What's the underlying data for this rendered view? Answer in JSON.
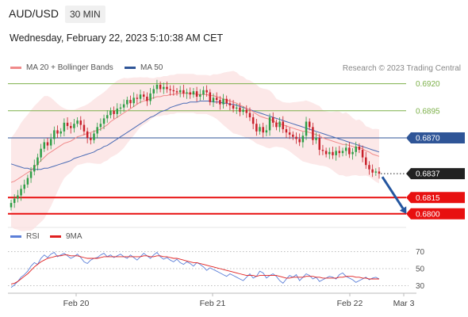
{
  "header": {
    "symbol": "AUD/USD",
    "timeframe": "30 MIN",
    "datetime": "Wednesday, February 22, 2023 5:10:38 AM CET",
    "credit": "Research © 2023 Trading Central"
  },
  "legend": {
    "price": [
      {
        "label": "MA 20 + Bollinger Bands",
        "color": "#f08a8a"
      },
      {
        "label": "MA 50",
        "color": "#2f5597"
      }
    ],
    "indicator": [
      {
        "label": "RSI",
        "color": "#5b7fd8"
      },
      {
        "label": "9MA",
        "color": "#e02020"
      }
    ]
  },
  "chart_data": [
    {
      "type": "candlestick",
      "x_ticks": [
        "Feb 20",
        "Feb 21",
        "Feb 22",
        "Mar 3"
      ],
      "ylim": [
        0.6794,
        0.6927
      ],
      "levels": [
        {
          "value": 0.692,
          "label": "0.6920",
          "kind": "resistance",
          "color": "#7db04a"
        },
        {
          "value": 0.6895,
          "label": "0.6895",
          "kind": "resistance",
          "color": "#7db04a"
        },
        {
          "value": 0.687,
          "label": "0.6870",
          "kind": "pivot",
          "color": "#2f5597"
        },
        {
          "value": 0.6837,
          "label": "0.6837",
          "kind": "last-price",
          "color": "#222222"
        },
        {
          "value": 0.6815,
          "label": "0.6815",
          "kind": "target",
          "color": "#e81010"
        },
        {
          "value": 0.68,
          "label": "0.6800",
          "kind": "target",
          "color": "#e81010"
        }
      ],
      "forecast": {
        "direction": "down",
        "from": 0.6837,
        "to": 0.6802
      },
      "close": [
        0.681,
        0.6814,
        0.6817,
        0.6823,
        0.6827,
        0.6833,
        0.6839,
        0.6845,
        0.6852,
        0.686,
        0.6866,
        0.6863,
        0.6869,
        0.6877,
        0.6874,
        0.6876,
        0.6884,
        0.6881,
        0.6879,
        0.6883,
        0.6886,
        0.6882,
        0.6876,
        0.687,
        0.6868,
        0.6874,
        0.688,
        0.6883,
        0.6888,
        0.6891,
        0.6895,
        0.6892,
        0.6897,
        0.6898,
        0.6901,
        0.6905,
        0.6902,
        0.6907,
        0.6906,
        0.691,
        0.6908,
        0.6904,
        0.6911,
        0.6915,
        0.6919,
        0.6915,
        0.6917,
        0.6915,
        0.6914,
        0.6913,
        0.6912,
        0.6914,
        0.6911,
        0.6912,
        0.691,
        0.6913,
        0.6908,
        0.691,
        0.6914,
        0.6912,
        0.6903,
        0.6907,
        0.6905,
        0.6901,
        0.6906,
        0.6902,
        0.69,
        0.6897,
        0.6898,
        0.6894,
        0.6896,
        0.6893,
        0.6889,
        0.6883,
        0.6876,
        0.688,
        0.6875,
        0.6877,
        0.6889,
        0.6884,
        0.688,
        0.6885,
        0.6878,
        0.6875,
        0.6873,
        0.6871,
        0.6869,
        0.6866,
        0.6872,
        0.6885,
        0.688,
        0.6868,
        0.687,
        0.6859,
        0.6858,
        0.6855,
        0.6857,
        0.6854,
        0.6858,
        0.6856,
        0.6858,
        0.6861,
        0.6855,
        0.6857,
        0.6862,
        0.6859,
        0.6852,
        0.6845,
        0.6841,
        0.6838,
        0.6839,
        0.6837
      ],
      "series": [
        {
          "name": "MA 20",
          "values": [
            0.6829,
            0.683,
            0.6832,
            0.6834,
            0.6836,
            0.6838,
            0.684,
            0.6843,
            0.6846,
            0.6849,
            0.6852,
            0.6855,
            0.6857,
            0.6859,
            0.6861,
            0.6863,
            0.6865,
            0.6866,
            0.6867,
            0.6869,
            0.6871,
            0.6872,
            0.6873,
            0.6874,
            0.6875,
            0.6876,
            0.6877,
            0.6878,
            0.688,
            0.6882,
            0.6885,
            0.6887,
            0.6889,
            0.6891,
            0.6893,
            0.6895,
            0.6897,
            0.6899,
            0.6901,
            0.6903,
            0.6904,
            0.6905,
            0.6906,
            0.6907,
            0.6908,
            0.6908,
            0.6909,
            0.6909,
            0.691,
            0.691,
            0.6911,
            0.6911,
            0.6911,
            0.6911,
            0.6911,
            0.6911,
            0.691,
            0.691,
            0.691,
            0.691,
            0.6909,
            0.6909,
            0.6908,
            0.6907,
            0.6906,
            0.6905,
            0.6904,
            0.6903,
            0.6902,
            0.69,
            0.6899,
            0.6897,
            0.6896,
            0.6894,
            0.6892,
            0.689,
            0.6889,
            0.6888,
            0.6887,
            0.6886,
            0.6884,
            0.6883,
            0.6882,
            0.6881,
            0.688,
            0.6879,
            0.6878,
            0.6877,
            0.6876,
            0.6876,
            0.6875,
            0.6874,
            0.6873,
            0.6872,
            0.687,
            0.6869,
            0.6868,
            0.6867,
            0.6866,
            0.6865,
            0.6864,
            0.6864,
            0.6863,
            0.6862,
            0.6861,
            0.6861,
            0.686,
            0.6858,
            0.6857,
            0.6855,
            0.6854,
            0.6853
          ]
        },
        {
          "name": "MA 50",
          "values": [
            0.6846,
            0.6845,
            0.6844,
            0.6843,
            0.6842,
            0.6842,
            0.6841,
            0.6841,
            0.6841,
            0.6841,
            0.6842,
            0.6842,
            0.6843,
            0.6844,
            0.6845,
            0.6846,
            0.6847,
            0.6848,
            0.6849,
            0.6851,
            0.6852,
            0.6853,
            0.6854,
            0.6855,
            0.6856,
            0.6857,
            0.6859,
            0.686,
            0.6862,
            0.6863,
            0.6865,
            0.6867,
            0.6869,
            0.6871,
            0.6873,
            0.6875,
            0.6877,
            0.6879,
            0.6881,
            0.6883,
            0.6885,
            0.6887,
            0.6889,
            0.689,
            0.6892,
            0.6894,
            0.6895,
            0.6896,
            0.6898,
            0.6899,
            0.69,
            0.6901,
            0.6902,
            0.6902,
            0.6903,
            0.6903,
            0.6903,
            0.6904,
            0.6904,
            0.6904,
            0.6904,
            0.6903,
            0.6903,
            0.6903,
            0.6902,
            0.6902,
            0.6901,
            0.6901,
            0.69,
            0.6899,
            0.6898,
            0.6897,
            0.6896,
            0.6895,
            0.6894,
            0.6893,
            0.6892,
            0.6891,
            0.689,
            0.6889,
            0.6888,
            0.6887,
            0.6886,
            0.6885,
            0.6884,
            0.6883,
            0.6882,
            0.6881,
            0.688,
            0.6879,
            0.6878,
            0.6877,
            0.6876,
            0.6875,
            0.6874,
            0.6873,
            0.6872,
            0.6871,
            0.687,
            0.6869,
            0.6868,
            0.6867,
            0.6866,
            0.6865,
            0.6864,
            0.6863,
            0.6862,
            0.6861,
            0.686,
            0.6859,
            0.6858,
            0.6857
          ]
        }
      ]
    },
    {
      "type": "line",
      "y_ticks": [
        70,
        50,
        30
      ],
      "ylim": [
        25,
        75
      ],
      "series": [
        {
          "name": "RSI",
          "values": [
            28,
            31,
            35,
            40,
            43,
            47,
            53,
            57,
            55,
            62,
            66,
            63,
            67,
            69,
            64,
            66,
            68,
            65,
            62,
            64,
            67,
            63,
            58,
            56,
            60,
            62,
            63,
            66,
            68,
            64,
            66,
            63,
            65,
            67,
            64,
            62,
            66,
            63,
            60,
            64,
            68,
            65,
            62,
            66,
            69,
            64,
            61,
            63,
            60,
            58,
            61,
            57,
            55,
            58,
            56,
            53,
            57,
            55,
            52,
            48,
            51,
            49,
            47,
            45,
            43,
            41,
            44,
            42,
            40,
            38,
            36,
            40,
            44,
            39,
            41,
            47,
            45,
            39,
            42,
            44,
            41,
            36,
            33,
            38,
            42,
            40,
            43,
            36,
            40,
            44,
            42,
            38,
            40,
            35,
            37,
            39,
            41,
            40,
            38,
            43,
            45,
            41,
            39,
            37,
            34,
            36,
            38,
            40,
            37,
            39,
            40,
            38
          ]
        },
        {
          "name": "9MA",
          "values": [
            32,
            33,
            35,
            38,
            41,
            44,
            48,
            52,
            55,
            58,
            60,
            62,
            63,
            64,
            65,
            65,
            66,
            66,
            65,
            65,
            65,
            64,
            63,
            62,
            62,
            62,
            62,
            63,
            64,
            64,
            64,
            64,
            64,
            64,
            64,
            64,
            64,
            64,
            64,
            64,
            65,
            65,
            64,
            64,
            65,
            65,
            64,
            64,
            63,
            62,
            62,
            61,
            60,
            59,
            58,
            57,
            57,
            56,
            55,
            54,
            53,
            52,
            51,
            50,
            49,
            48,
            47,
            46,
            45,
            44,
            43,
            42,
            42,
            42,
            41,
            42,
            42,
            42,
            42,
            42,
            42,
            41,
            40,
            39,
            39,
            40,
            40,
            40,
            40,
            41,
            41,
            41,
            40,
            40,
            39,
            39,
            39,
            39,
            39,
            40,
            40,
            41,
            41,
            41,
            40,
            40,
            39,
            39,
            38,
            38,
            38,
            38
          ]
        }
      ]
    }
  ]
}
